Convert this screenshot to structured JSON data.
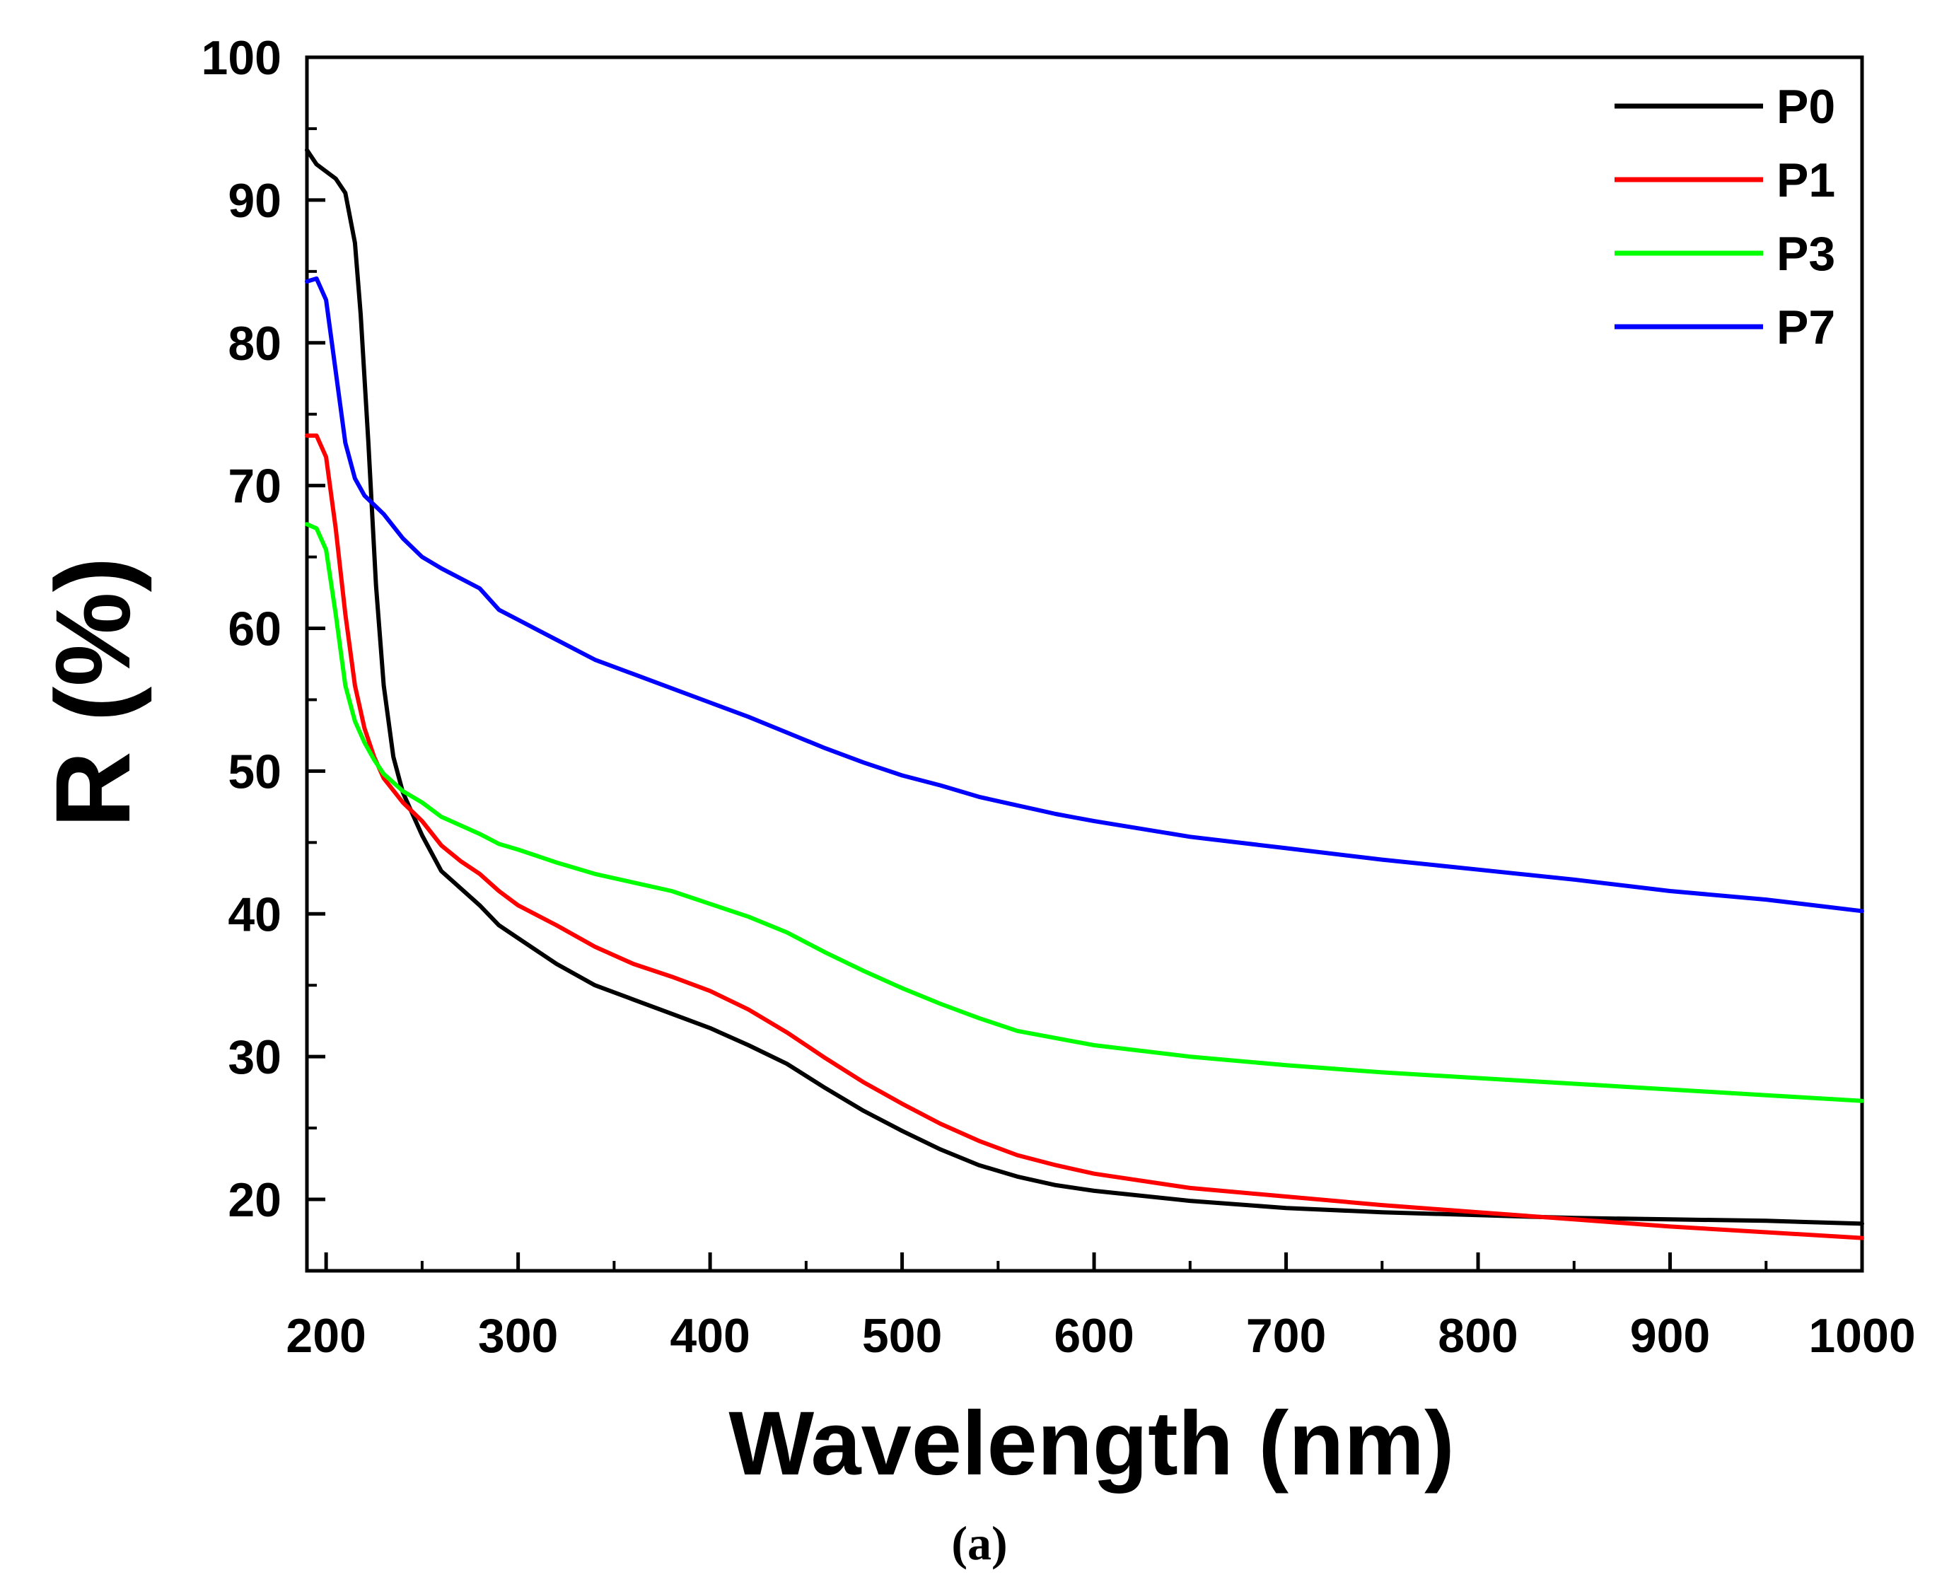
{
  "chart_data": {
    "type": "line",
    "title": "",
    "xlabel": "Wavelength (nm)",
    "ylabel": "R (%)",
    "caption": "(a)",
    "xlim": [
      190,
      1000
    ],
    "ylim": [
      15,
      100
    ],
    "xticks": [
      200,
      300,
      400,
      500,
      600,
      700,
      800,
      900,
      1000
    ],
    "yticks": [
      20,
      30,
      40,
      50,
      60,
      70,
      80,
      90,
      100
    ],
    "legend_position": "top-right",
    "grid": false,
    "series": [
      {
        "name": "P0",
        "color": "#000000",
        "points": [
          [
            190,
            93.5
          ],
          [
            195,
            92.5
          ],
          [
            200,
            92
          ],
          [
            205,
            91.5
          ],
          [
            210,
            90.5
          ],
          [
            215,
            87
          ],
          [
            218,
            82
          ],
          [
            222,
            73
          ],
          [
            226,
            63
          ],
          [
            230,
            56
          ],
          [
            235,
            51
          ],
          [
            240,
            48.5
          ],
          [
            250,
            45.5
          ],
          [
            260,
            43
          ],
          [
            270,
            41.8
          ],
          [
            280,
            40.6
          ],
          [
            290,
            39.2
          ],
          [
            300,
            38.3
          ],
          [
            320,
            36.5
          ],
          [
            340,
            35
          ],
          [
            360,
            34
          ],
          [
            380,
            33
          ],
          [
            400,
            32
          ],
          [
            420,
            30.8
          ],
          [
            440,
            29.5
          ],
          [
            460,
            27.8
          ],
          [
            480,
            26.2
          ],
          [
            500,
            24.8
          ],
          [
            520,
            23.5
          ],
          [
            540,
            22.4
          ],
          [
            560,
            21.6
          ],
          [
            580,
            21
          ],
          [
            600,
            20.6
          ],
          [
            650,
            19.9
          ],
          [
            700,
            19.4
          ],
          [
            750,
            19.1
          ],
          [
            800,
            18.9
          ],
          [
            850,
            18.7
          ],
          [
            900,
            18.6
          ],
          [
            950,
            18.5
          ],
          [
            1000,
            18.3
          ]
        ]
      },
      {
        "name": "P1",
        "color": "#ff0000",
        "points": [
          [
            190,
            73.5
          ],
          [
            195,
            73.5
          ],
          [
            200,
            72
          ],
          [
            205,
            67
          ],
          [
            210,
            61
          ],
          [
            215,
            56
          ],
          [
            220,
            53
          ],
          [
            225,
            51
          ],
          [
            230,
            49.5
          ],
          [
            240,
            47.8
          ],
          [
            250,
            46.5
          ],
          [
            260,
            44.8
          ],
          [
            270,
            43.7
          ],
          [
            280,
            42.8
          ],
          [
            290,
            41.6
          ],
          [
            300,
            40.6
          ],
          [
            320,
            39.2
          ],
          [
            340,
            37.7
          ],
          [
            360,
            36.5
          ],
          [
            380,
            35.6
          ],
          [
            400,
            34.6
          ],
          [
            420,
            33.3
          ],
          [
            440,
            31.7
          ],
          [
            460,
            29.9
          ],
          [
            480,
            28.2
          ],
          [
            500,
            26.7
          ],
          [
            520,
            25.3
          ],
          [
            540,
            24.1
          ],
          [
            560,
            23.1
          ],
          [
            580,
            22.4
          ],
          [
            600,
            21.8
          ],
          [
            650,
            20.8
          ],
          [
            700,
            20.2
          ],
          [
            750,
            19.6
          ],
          [
            800,
            19.1
          ],
          [
            850,
            18.6
          ],
          [
            900,
            18.1
          ],
          [
            950,
            17.7
          ],
          [
            1000,
            17.3
          ]
        ]
      },
      {
        "name": "P3",
        "color": "#00ff00",
        "points": [
          [
            190,
            67.3
          ],
          [
            195,
            67
          ],
          [
            200,
            65.5
          ],
          [
            205,
            61
          ],
          [
            210,
            56
          ],
          [
            215,
            53.5
          ],
          [
            220,
            52
          ],
          [
            225,
            50.8
          ],
          [
            230,
            49.8
          ],
          [
            240,
            48.6
          ],
          [
            250,
            47.8
          ],
          [
            260,
            46.8
          ],
          [
            270,
            46.2
          ],
          [
            280,
            45.6
          ],
          [
            290,
            44.9
          ],
          [
            300,
            44.5
          ],
          [
            320,
            43.6
          ],
          [
            340,
            42.8
          ],
          [
            360,
            42.2
          ],
          [
            380,
            41.6
          ],
          [
            400,
            40.7
          ],
          [
            420,
            39.8
          ],
          [
            440,
            38.7
          ],
          [
            460,
            37.3
          ],
          [
            480,
            36
          ],
          [
            500,
            34.8
          ],
          [
            520,
            33.7
          ],
          [
            540,
            32.7
          ],
          [
            560,
            31.8
          ],
          [
            580,
            31.3
          ],
          [
            600,
            30.8
          ],
          [
            650,
            30
          ],
          [
            700,
            29.4
          ],
          [
            750,
            28.9
          ],
          [
            800,
            28.5
          ],
          [
            850,
            28.1
          ],
          [
            900,
            27.7
          ],
          [
            950,
            27.3
          ],
          [
            1000,
            26.9
          ]
        ]
      },
      {
        "name": "P7",
        "color": "#0000ff",
        "points": [
          [
            190,
            84.3
          ],
          [
            195,
            84.5
          ],
          [
            200,
            83
          ],
          [
            205,
            78
          ],
          [
            210,
            73
          ],
          [
            215,
            70.5
          ],
          [
            220,
            69.3
          ],
          [
            230,
            68
          ],
          [
            240,
            66.3
          ],
          [
            250,
            65
          ],
          [
            260,
            64.2
          ],
          [
            270,
            63.5
          ],
          [
            280,
            62.8
          ],
          [
            290,
            61.3
          ],
          [
            300,
            60.6
          ],
          [
            320,
            59.2
          ],
          [
            340,
            57.8
          ],
          [
            360,
            56.8
          ],
          [
            380,
            55.8
          ],
          [
            400,
            54.8
          ],
          [
            420,
            53.8
          ],
          [
            440,
            52.7
          ],
          [
            460,
            51.6
          ],
          [
            480,
            50.6
          ],
          [
            500,
            49.7
          ],
          [
            520,
            49
          ],
          [
            540,
            48.2
          ],
          [
            560,
            47.6
          ],
          [
            580,
            47
          ],
          [
            600,
            46.5
          ],
          [
            650,
            45.4
          ],
          [
            700,
            44.6
          ],
          [
            750,
            43.8
          ],
          [
            800,
            43.1
          ],
          [
            850,
            42.4
          ],
          [
            900,
            41.6
          ],
          [
            950,
            41
          ],
          [
            1000,
            40.2
          ]
        ]
      }
    ]
  }
}
